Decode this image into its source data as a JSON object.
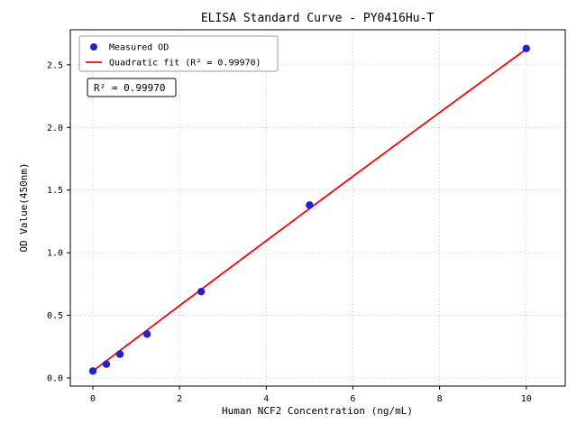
{
  "chart_data": {
    "type": "scatter",
    "title": "ELISA Standard Curve - PY0416Hu-T",
    "xlabel": "Human NCF2 Concentration (ng/mL)",
    "ylabel": "OD Value(450nm)",
    "xlim": [
      -0.52,
      10.9
    ],
    "ylim": [
      -0.065,
      2.78
    ],
    "xticks": [
      0,
      2,
      4,
      6,
      8,
      10
    ],
    "xtick_labels": [
      "0",
      "2",
      "4",
      "6",
      "8",
      "10"
    ],
    "yticks": [
      0.0,
      0.5,
      1.0,
      1.5,
      2.0,
      2.5
    ],
    "ytick_labels": [
      "0.0",
      "0.5",
      "1.0",
      "1.5",
      "2.0",
      "2.5"
    ],
    "grid": true,
    "legend_position": "upper-left",
    "annotation": "R² = 0.99970",
    "fit": {
      "a": 0.055,
      "b": 0.262,
      "c": -0.0005,
      "x_start": 0,
      "x_end": 10
    },
    "series": [
      {
        "name": "Measured OD",
        "type": "scatter",
        "color": "#2222cc",
        "x": [
          0,
          0.3125,
          0.625,
          1.25,
          2.5,
          5,
          10
        ],
        "y": [
          0.055,
          0.11,
          0.19,
          0.35,
          0.69,
          1.38,
          2.63
        ]
      },
      {
        "name": "Quadratic fit (R² = 0.99970)",
        "type": "line",
        "color": "#ff0000",
        "x": [
          0,
          10
        ],
        "y": [
          0.055,
          2.625
        ]
      }
    ],
    "colors": {
      "scatter": "#2222cc",
      "fit_line": "#ff0000",
      "grid": "#b5b5b5",
      "spine": "#000000",
      "legend_border": "#9a9a9a",
      "annotation_border": "#000000"
    }
  }
}
